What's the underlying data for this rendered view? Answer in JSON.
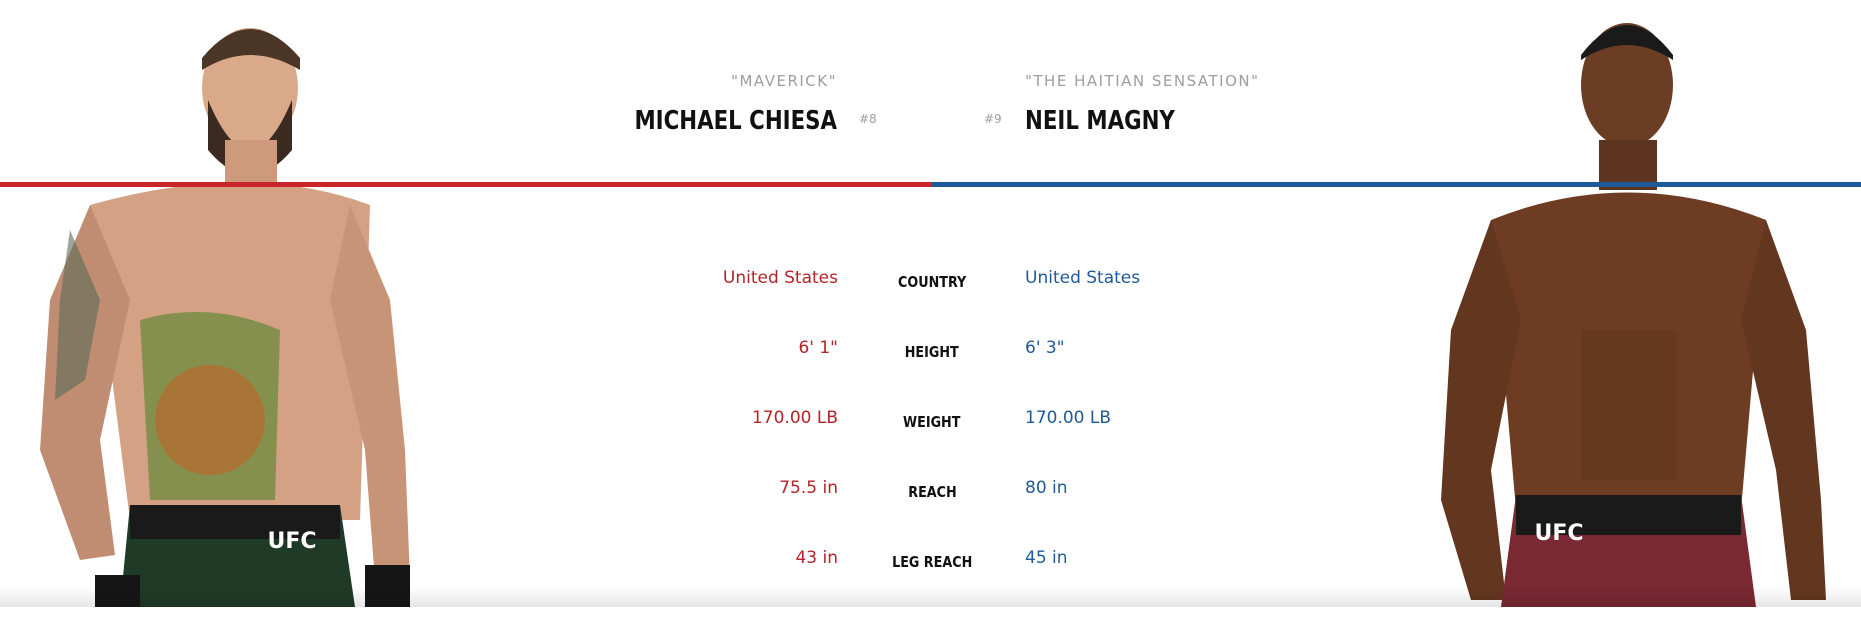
{
  "red_corner": {
    "nickname": "\"MAVERICK\"",
    "name": "MICHAEL CHIESA",
    "rank": "#8",
    "stats": {
      "country": "United States",
      "height": "6' 1\"",
      "weight": "170.00 LB",
      "reach": "75.5 in",
      "leg_reach": "43 in"
    },
    "color": "#c9252b"
  },
  "blue_corner": {
    "nickname": "\"THE HAITIAN SENSATION\"",
    "name": "NEIL MAGNY",
    "rank": "#9",
    "stats": {
      "country": "United States",
      "height": "6' 3\"",
      "weight": "170.00 LB",
      "reach": "80 in",
      "leg_reach": "45 in"
    },
    "color": "#1f5a98"
  },
  "labels": {
    "country": "COUNTRY",
    "height": "HEIGHT",
    "weight": "WEIGHT",
    "reach": "REACH",
    "leg_reach": "LEG REACH"
  },
  "images": {
    "red_photo_icon": "fighter-photo-red",
    "blue_photo_icon": "fighter-photo-blue",
    "shorts_logo": "UFC"
  }
}
